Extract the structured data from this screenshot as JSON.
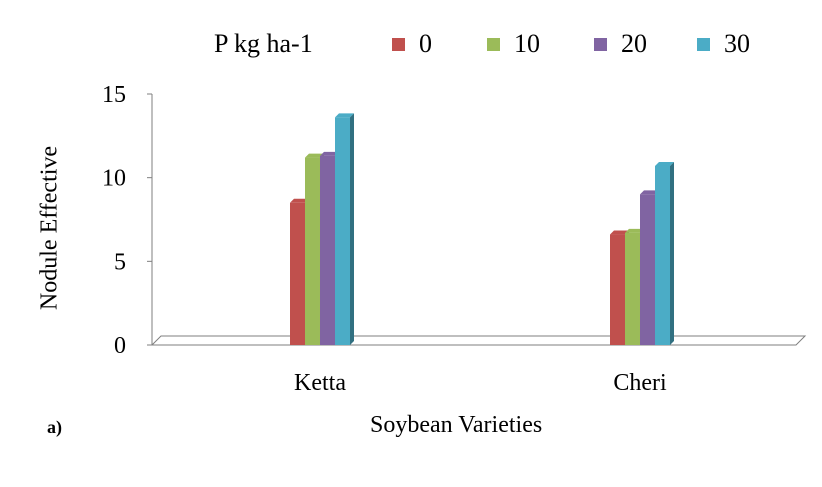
{
  "chart_data": {
    "type": "bar",
    "title": "",
    "categories": [
      "Ketta",
      "Cheri"
    ],
    "series": [
      {
        "name": "0",
        "values": [
          8.5,
          6.6
        ],
        "color": "#c0504d"
      },
      {
        "name": "10",
        "values": [
          11.2,
          6.7
        ],
        "color": "#9bbb59"
      },
      {
        "name": "20",
        "values": [
          11.3,
          9.0
        ],
        "color": "#8064a2"
      },
      {
        "name": "30",
        "values": [
          13.6,
          10.7
        ],
        "color": "#4bacc6"
      }
    ],
    "legend_title": "P kg ha-1",
    "legend_position": "top",
    "xlabel": "Soybean Varieties",
    "ylabel": "Nodule Effective",
    "ylim": [
      0,
      15
    ],
    "yticks": [
      "0",
      "5",
      "10",
      "15"
    ],
    "panel_label": "a)"
  }
}
